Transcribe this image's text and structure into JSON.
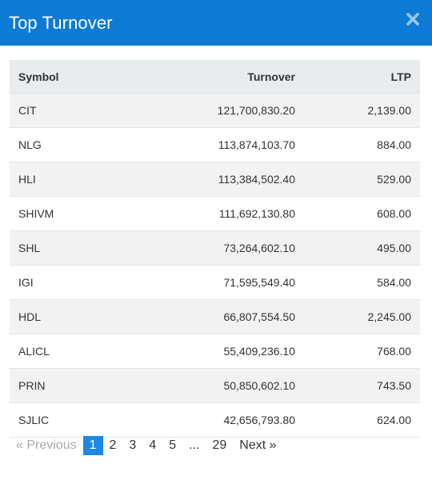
{
  "header": {
    "title": "Top Turnover",
    "close_icon": "close-icon"
  },
  "table": {
    "columns": [
      "Symbol",
      "Turnover",
      "LTP"
    ],
    "rows": [
      {
        "symbol": "CIT",
        "turnover": "121,700,830.20",
        "ltp": "2,139.00"
      },
      {
        "symbol": "NLG",
        "turnover": "113,874,103.70",
        "ltp": "884.00"
      },
      {
        "symbol": "HLI",
        "turnover": "113,384,502.40",
        "ltp": "529.00"
      },
      {
        "symbol": "SHIVM",
        "turnover": "111,692,130.80",
        "ltp": "608.00"
      },
      {
        "symbol": "SHL",
        "turnover": "73,264,602.10",
        "ltp": "495.00"
      },
      {
        "symbol": "IGI",
        "turnover": "71,595,549.40",
        "ltp": "584.00"
      },
      {
        "symbol": "HDL",
        "turnover": "66,807,554.50",
        "ltp": "2,245.00"
      },
      {
        "symbol": "ALICL",
        "turnover": "55,409,236.10",
        "ltp": "768.00"
      },
      {
        "symbol": "PRIN",
        "turnover": "50,850,602.10",
        "ltp": "743.50"
      },
      {
        "symbol": "SJLIC",
        "turnover": "42,656,793.80",
        "ltp": "624.00"
      }
    ]
  },
  "pagination": {
    "previous": "«   Previous",
    "pages": [
      "1",
      "2",
      "3",
      "4",
      "5"
    ],
    "ellipsis": "...",
    "last": "29",
    "next": "Next   »",
    "current": "1"
  },
  "colors": {
    "accent": "#0d7bd6",
    "active_page": "#1e88e5"
  }
}
